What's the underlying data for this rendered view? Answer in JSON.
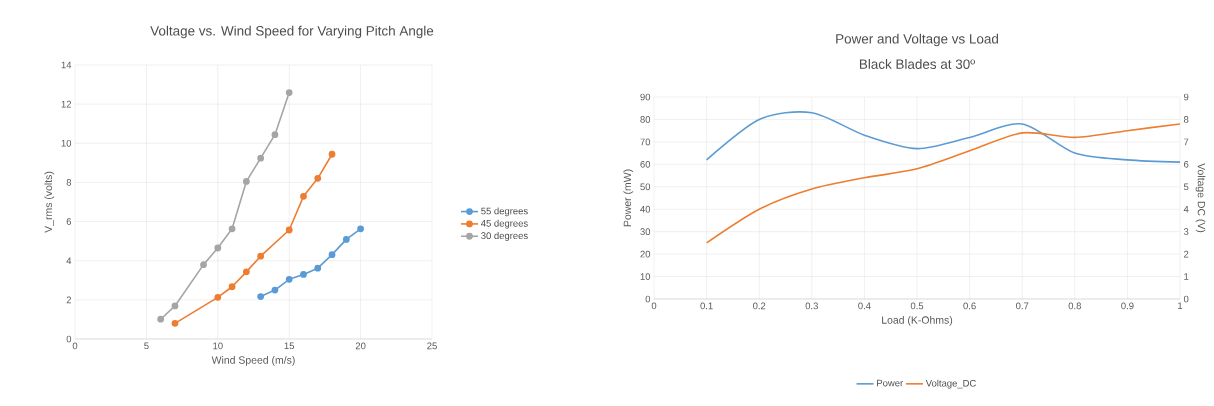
{
  "chart_data": [
    {
      "type": "line",
      "title": "Voltage vs. Wind Speed for Varying Pitch Angle",
      "xlabel": "Wind Speed (m/s)",
      "ylabel": "V_rms (volts)",
      "xlim": [
        0,
        25
      ],
      "xticks": [
        0,
        5,
        10,
        15,
        20,
        25
      ],
      "ylim": [
        0,
        14
      ],
      "yticks": [
        0,
        2,
        4,
        6,
        8,
        10,
        12,
        14
      ],
      "grid": true,
      "legend": "right",
      "marker": "circle",
      "series": [
        {
          "name": "55 degrees",
          "color": "#5b9bd5",
          "x": [
            13,
            14,
            15,
            16,
            17,
            18,
            19,
            20
          ],
          "values": [
            2.17,
            2.5,
            3.05,
            3.3,
            3.62,
            4.31,
            5.09,
            5.63
          ]
        },
        {
          "name": "45 degrees",
          "color": "#ed7d31",
          "x": [
            7,
            10,
            11,
            12,
            13,
            15,
            16,
            17,
            18
          ],
          "values": [
            0.8,
            2.13,
            2.67,
            3.43,
            4.23,
            5.57,
            7.29,
            8.21,
            9.44
          ]
        },
        {
          "name": "30 degrees",
          "color": "#a5a5a5",
          "x": [
            6,
            7,
            9,
            10,
            11,
            12,
            13,
            14,
            15
          ],
          "values": [
            1.01,
            1.69,
            3.8,
            4.65,
            5.63,
            8.05,
            9.24,
            10.44,
            12.59
          ]
        }
      ]
    },
    {
      "type": "line",
      "title": "Power and Voltage vs Load",
      "subtitle": "Black Blades at 30º",
      "xlabel": "Load (K-Ohms)",
      "ylabel": "Power (mW)",
      "y2label": "Voltage DC (V)",
      "x": [
        0.1,
        0.2,
        0.3,
        0.4,
        0.5,
        0.6,
        0.7,
        0.8,
        0.9,
        1
      ],
      "xlim": [
        0,
        1
      ],
      "xticks": [
        0,
        0.1,
        0.2,
        0.3,
        0.4,
        0.5,
        0.6,
        0.7,
        0.8,
        0.9,
        1
      ],
      "ylim": [
        0,
        90
      ],
      "yticks": [
        0,
        10,
        20,
        30,
        40,
        50,
        60,
        70,
        80,
        90
      ],
      "y2lim": [
        0,
        9
      ],
      "y2ticks": [
        0,
        1,
        2,
        3,
        4,
        5,
        6,
        7,
        8,
        9
      ],
      "grid": true,
      "legend": "bottom",
      "marker": "none",
      "series": [
        {
          "name": "Power",
          "color": "#5b9bd5",
          "values": [
            62,
            80,
            83,
            73,
            67,
            72,
            78,
            65,
            62,
            61
          ]
        },
        {
          "name": "Voltage_DC",
          "color": "#ed7d31",
          "axis": "y2",
          "values": [
            2.5,
            4.0,
            4.9,
            5.4,
            5.8,
            6.6,
            7.4,
            7.2,
            7.5,
            7.8
          ]
        }
      ]
    }
  ]
}
